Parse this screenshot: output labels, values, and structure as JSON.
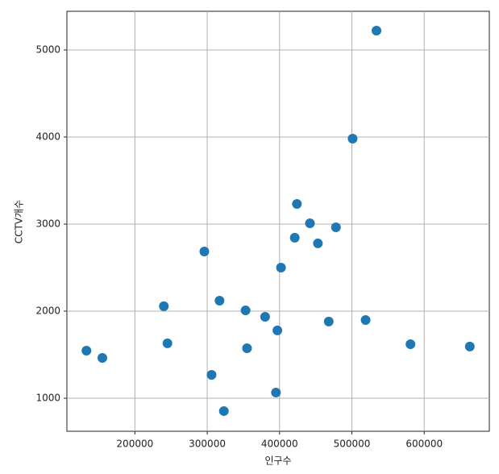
{
  "chart_data": {
    "type": "scatter",
    "xlabel": "인구수",
    "ylabel": "CCTV개수",
    "x": [
      133000,
      155000,
      240000,
      245000,
      296000,
      306000,
      317000,
      323000,
      353000,
      355000,
      380000,
      395000,
      397000,
      402000,
      421000,
      424000,
      442000,
      453000,
      468000,
      478000,
      501000,
      519000,
      534000,
      581000,
      663000
    ],
    "values": [
      1546,
      1463,
      2056,
      1630,
      2685,
      1268,
      2120,
      852,
      2009,
      1574,
      1935,
      1065,
      1778,
      2500,
      2843,
      3231,
      3009,
      2778,
      1880,
      2963,
      3981,
      1898,
      5222,
      1620,
      1593
    ],
    "color": "#1f77b4",
    "xlim": [
      106000,
      690000
    ],
    "ylim": [
      620,
      5444
    ],
    "xticks": [
      200000,
      300000,
      400000,
      500000,
      600000
    ],
    "yticks": [
      1000,
      2000,
      3000,
      4000,
      5000
    ],
    "grid": true
  }
}
